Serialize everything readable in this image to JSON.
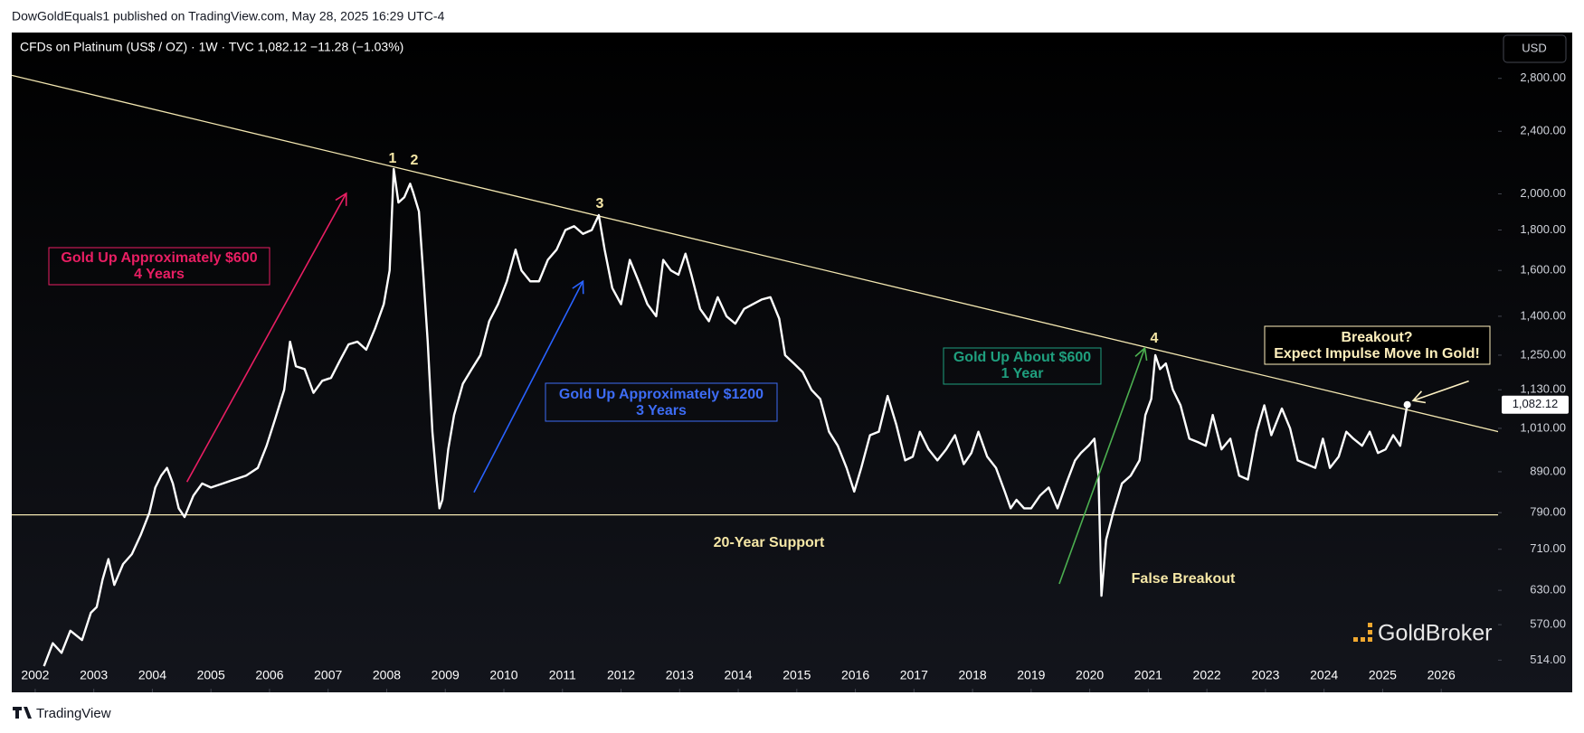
{
  "header": "DowGoldEquals1 published on TradingView.com, May 28, 2025 16:29 UTC-4",
  "footer": "TradingView",
  "chart_data": {
    "type": "line",
    "title": "CFDs on Platinum (US$ / OZ) · 1W · TVC  1,082.12  −11.28 (−1.03%)",
    "currency_button": "USD",
    "watermark": "GoldBroker",
    "log_scale": true,
    "grid": false,
    "color": "#ffffff",
    "xlim": [
      2001.6,
      2026.97
    ],
    "ylim": [
      468,
      3200
    ],
    "xticks": [
      2002,
      2003,
      2004,
      2005,
      2006,
      2007,
      2008,
      2009,
      2010,
      2011,
      2012,
      2013,
      2014,
      2015,
      2016,
      2017,
      2018,
      2019,
      2020,
      2021,
      2022,
      2023,
      2024,
      2025,
      2026
    ],
    "yticks": [
      {
        "value": 2800,
        "label": "2,800.00"
      },
      {
        "value": 2400,
        "label": "2,400.00"
      },
      {
        "value": 2000,
        "label": "2,000.00"
      },
      {
        "value": 1800,
        "label": "1,800.00"
      },
      {
        "value": 1600,
        "label": "1,600.00"
      },
      {
        "value": 1400,
        "label": "1,400.00"
      },
      {
        "value": 1250,
        "label": "1,250.00"
      },
      {
        "value": 1130,
        "label": "1,130.00"
      },
      {
        "value": 1010,
        "label": "1,010.00"
      },
      {
        "value": 890,
        "label": "890.00"
      },
      {
        "value": 790,
        "label": "790.00"
      },
      {
        "value": 710,
        "label": "710.00"
      },
      {
        "value": 630,
        "label": "630.00"
      },
      {
        "value": 570,
        "label": "570.00"
      },
      {
        "value": 514,
        "label": "514.00"
      }
    ],
    "last_price": {
      "value": 1082.12,
      "label": "1,082.12"
    },
    "x": [
      2002.15,
      2002.3,
      2002.45,
      2002.6,
      2002.8,
      2002.95,
      2003.05,
      2003.15,
      2003.25,
      2003.35,
      2003.5,
      2003.65,
      2003.8,
      2003.95,
      2004.05,
      2004.15,
      2004.25,
      2004.35,
      2004.45,
      2004.55,
      2004.7,
      2004.85,
      2005.0,
      2005.2,
      2005.4,
      2005.6,
      2005.8,
      2005.95,
      2006.1,
      2006.25,
      2006.35,
      2006.45,
      2006.6,
      2006.75,
      2006.9,
      2007.05,
      2007.2,
      2007.35,
      2007.5,
      2007.65,
      2007.8,
      2007.95,
      2008.05,
      2008.12,
      2008.2,
      2008.3,
      2008.4,
      2008.45,
      2008.55,
      2008.62,
      2008.7,
      2008.78,
      2008.85,
      2008.9,
      2008.95,
      2009.05,
      2009.15,
      2009.3,
      2009.45,
      2009.6,
      2009.75,
      2009.9,
      2010.05,
      2010.2,
      2010.3,
      2010.45,
      2010.6,
      2010.75,
      2010.9,
      2011.05,
      2011.2,
      2011.35,
      2011.5,
      2011.62,
      2011.72,
      2011.85,
      2012.0,
      2012.15,
      2012.3,
      2012.45,
      2012.6,
      2012.72,
      2012.85,
      2012.98,
      2013.1,
      2013.2,
      2013.35,
      2013.5,
      2013.65,
      2013.8,
      2013.95,
      2014.1,
      2014.25,
      2014.4,
      2014.55,
      2014.7,
      2014.8,
      2014.95,
      2015.1,
      2015.25,
      2015.4,
      2015.55,
      2015.7,
      2015.85,
      2015.98,
      2016.1,
      2016.25,
      2016.4,
      2016.55,
      2016.7,
      2016.85,
      2016.98,
      2017.1,
      2017.25,
      2017.4,
      2017.55,
      2017.7,
      2017.85,
      2017.98,
      2018.1,
      2018.25,
      2018.4,
      2018.55,
      2018.65,
      2018.75,
      2018.88,
      2019.0,
      2019.15,
      2019.3,
      2019.45,
      2019.6,
      2019.75,
      2019.85,
      2019.98,
      2020.08,
      2020.15,
      2020.2,
      2020.28,
      2020.4,
      2020.55,
      2020.7,
      2020.85,
      2020.95,
      2021.05,
      2021.12,
      2021.2,
      2021.3,
      2021.42,
      2021.55,
      2021.7,
      2021.85,
      2021.98,
      2022.1,
      2022.25,
      2022.4,
      2022.55,
      2022.7,
      2022.85,
      2022.98,
      2023.1,
      2023.28,
      2023.42,
      2023.55,
      2023.7,
      2023.85,
      2023.98,
      2024.1,
      2024.25,
      2024.38,
      2024.5,
      2024.65,
      2024.78,
      2024.92,
      2025.05,
      2025.18,
      2025.3,
      2025.42
    ],
    "values": [
      505,
      540,
      525,
      560,
      545,
      590,
      600,
      650,
      690,
      640,
      680,
      700,
      740,
      790,
      850,
      880,
      900,
      860,
      800,
      780,
      830,
      860,
      850,
      860,
      870,
      880,
      900,
      960,
      1040,
      1130,
      1300,
      1210,
      1200,
      1120,
      1160,
      1170,
      1230,
      1290,
      1300,
      1270,
      1350,
      1450,
      1600,
      2150,
      1950,
      1980,
      2060,
      2010,
      1900,
      1600,
      1300,
      1000,
      870,
      800,
      820,
      950,
      1050,
      1150,
      1200,
      1250,
      1380,
      1450,
      1550,
      1700,
      1600,
      1550,
      1550,
      1650,
      1700,
      1800,
      1820,
      1780,
      1800,
      1880,
      1700,
      1520,
      1450,
      1650,
      1550,
      1450,
      1400,
      1650,
      1600,
      1580,
      1680,
      1580,
      1430,
      1380,
      1480,
      1400,
      1370,
      1430,
      1450,
      1470,
      1480,
      1390,
      1250,
      1220,
      1190,
      1130,
      1100,
      1000,
      960,
      900,
      840,
      900,
      990,
      1000,
      1110,
      1020,
      920,
      930,
      1000,
      950,
      920,
      950,
      990,
      910,
      940,
      1000,
      930,
      900,
      840,
      800,
      820,
      800,
      800,
      830,
      850,
      800,
      860,
      920,
      940,
      960,
      980,
      880,
      620,
      730,
      790,
      860,
      880,
      920,
      1050,
      1100,
      1250,
      1200,
      1220,
      1130,
      1080,
      980,
      970,
      960,
      1050,
      950,
      980,
      880,
      870,
      1000,
      1080,
      990,
      1070,
      1010,
      920,
      910,
      900,
      980,
      900,
      930,
      1000,
      980,
      960,
      1000,
      940,
      950,
      990,
      960,
      1082.12
    ],
    "lines": [
      {
        "x": [
          2001.6,
          2026.98
        ],
        "y": [
          2825,
          1000
        ],
        "color": "#f3e7b1"
      },
      {
        "x": [
          2001.6,
          2026.98
        ],
        "y": [
          785,
          785
        ],
        "color": "#f3e7b1"
      }
    ],
    "arrows": [
      {
        "x": [
          2004.59,
          2007.31
        ],
        "y": [
          864,
          2003
        ],
        "color": "#e91e63"
      },
      {
        "x": [
          2009.49,
          2011.35
        ],
        "y": [
          838,
          1550
        ],
        "color": "#2962ff"
      },
      {
        "x": [
          2019.48,
          2020.94
        ],
        "y": [
          642,
          1276
        ],
        "color": "#4caf50"
      },
      {
        "x": [
          2026.47,
          2025.52
        ],
        "y": [
          1159,
          1095
        ],
        "color": "#fff3c4"
      }
    ],
    "wave_labels": [
      "1",
      "2",
      "3",
      "4"
    ],
    "wave_label_color": "#f6e7a6",
    "annotations": [
      {
        "text": [
          "Gold Up Approximately $600",
          "4 Years"
        ],
        "color": "#e91e63",
        "box": true
      },
      {
        "text": [
          "Gold Up Approximately $1200",
          "3 Years"
        ],
        "color": "#3d6cf5",
        "box": true
      },
      {
        "text": [
          "Gold Up About $600",
          "1 Year"
        ],
        "color": "#1f9f7e",
        "box": true
      },
      {
        "text": [
          "Breakout?",
          "Expect Impulse Move In Gold!"
        ],
        "color": "#fff0bd",
        "box": true
      },
      {
        "text": [
          "20-Year Support"
        ],
        "color": "#f6e7a6",
        "box": false
      },
      {
        "text": [
          "False Breakout"
        ],
        "color": "#f6e7a6",
        "box": false
      }
    ]
  }
}
